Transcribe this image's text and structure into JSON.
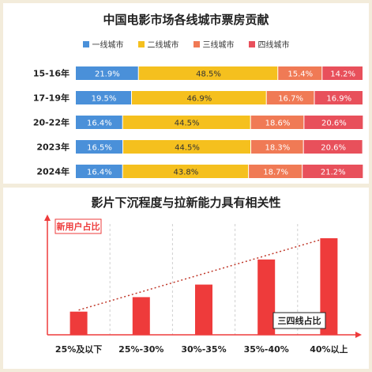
{
  "top_chart": {
    "title": "中国电影市场各线城市票房贡献",
    "legend": [
      "一线城市",
      "二线城市",
      "三线城市",
      "四线城市"
    ],
    "colors": [
      "#4a90d9",
      "#f5c01e",
      "#f07a55",
      "#e8505b"
    ]
  },
  "bottom_chart": {
    "title": "影片下沉程度与拉新能力具有相关性",
    "y_label": "新用户占比",
    "x_axis_label": "三四线占比",
    "bar_color": "#ee3b3b",
    "trend_color": "#c0392b"
  },
  "chart_data": [
    {
      "type": "bar",
      "orientation": "horizontal",
      "stacked": true,
      "percent": true,
      "title": "中国电影市场各线城市票房贡献",
      "categories": [
        "15-16年",
        "17-19年",
        "20-22年",
        "2023年",
        "2024年"
      ],
      "series": [
        {
          "name": "一线城市",
          "values": [
            21.9,
            19.5,
            16.4,
            16.5,
            16.4
          ]
        },
        {
          "name": "二线城市",
          "values": [
            48.5,
            46.9,
            44.5,
            44.5,
            43.8
          ]
        },
        {
          "name": "三线城市",
          "values": [
            15.4,
            16.7,
            18.6,
            18.3,
            18.7
          ]
        },
        {
          "name": "四线城市",
          "values": [
            14.2,
            16.9,
            20.6,
            20.6,
            21.2
          ]
        }
      ],
      "legend_position": "top",
      "grid": false
    },
    {
      "type": "bar",
      "title": "影片下沉程度与拉新能力具有相关性",
      "categories": [
        "25%及以下",
        "25%-30%",
        "30%-35%",
        "35%-40%",
        "40%以上"
      ],
      "values": [
        0.24,
        0.39,
        0.52,
        0.78,
        1.0
      ],
      "ylabel": "新用户占比",
      "xlabel": "三四线占比",
      "value_units": "relative",
      "trendline": true,
      "grid": "vertical dashed"
    }
  ]
}
